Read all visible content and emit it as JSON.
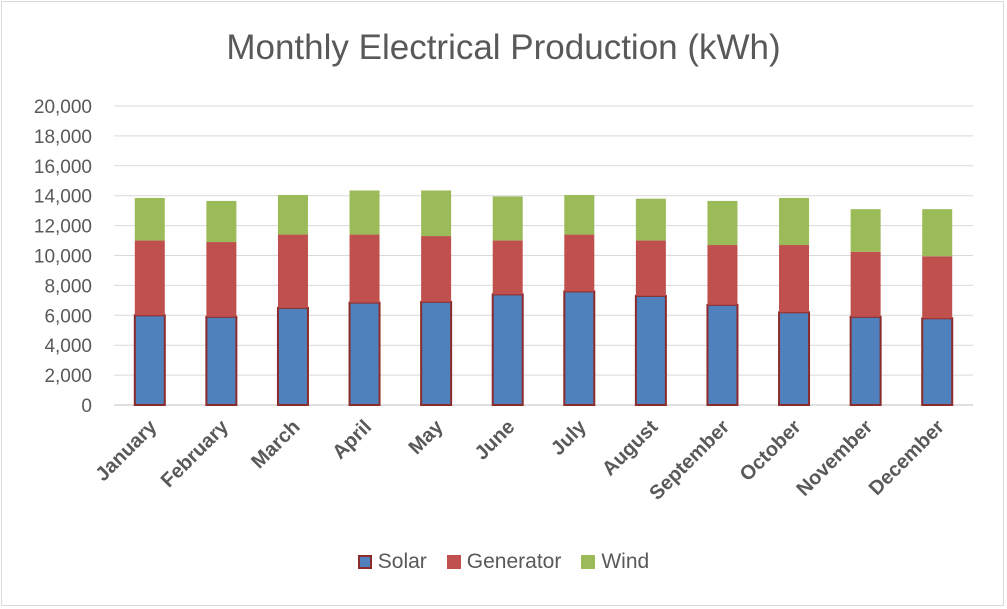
{
  "chart_data": {
    "type": "bar",
    "stacked": true,
    "title": "Monthly Electrical Production (kWh)",
    "xlabel": "",
    "ylabel": "",
    "ylim": [
      0,
      20000
    ],
    "yticks": [
      0,
      2000,
      4000,
      6000,
      8000,
      10000,
      12000,
      14000,
      16000,
      18000,
      20000
    ],
    "ytick_labels": [
      "0",
      "2,000",
      "4,000",
      "6,000",
      "8,000",
      "10,000",
      "12,000",
      "14,000",
      "16,000",
      "18,000",
      "20,000"
    ],
    "grid": true,
    "legend_position": "bottom",
    "categories": [
      "January",
      "February",
      "March",
      "April",
      "May",
      "June",
      "July",
      "August",
      "September",
      "October",
      "November",
      "December"
    ],
    "series": [
      {
        "name": "Solar",
        "color": "#4f81bd",
        "edge": "#8b2b2b",
        "values": [
          6000,
          5900,
          6500,
          6850,
          6900,
          7400,
          7600,
          7300,
          6700,
          6200,
          5900,
          5800
        ]
      },
      {
        "name": "Generator",
        "color": "#c0504d",
        "values": [
          5000,
          5000,
          4900,
          4550,
          4400,
          3600,
          3800,
          3700,
          4000,
          4500,
          4350,
          4150
        ]
      },
      {
        "name": "Wind",
        "color": "#9bbb59",
        "values": [
          2850,
          2750,
          2650,
          2950,
          3050,
          2950,
          2650,
          2800,
          2950,
          3150,
          2850,
          3150
        ]
      }
    ]
  }
}
